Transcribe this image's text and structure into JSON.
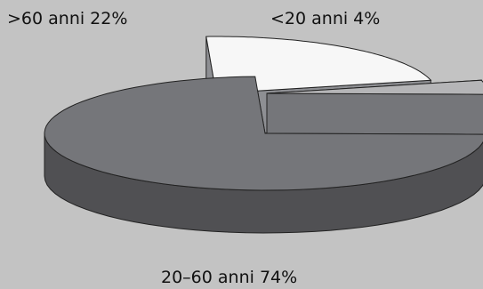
{
  "chart_data": {
    "type": "pie",
    "style": "3d-exploded",
    "slices": [
      {
        "label": ">60 anni 22%",
        "category": ">60 anni",
        "value": 22,
        "color": "#f7f7f7"
      },
      {
        "label": "<20 anni 4%",
        "category": "<20 anni",
        "value": 4,
        "color": "#b5b5b7"
      },
      {
        "label": "20–60 anni 74%",
        "category": "20–60 anni",
        "value": 74,
        "color": "#75767a"
      }
    ],
    "background": "#c3c3c3",
    "side_colors": [
      "#8e8f93",
      "#75767a",
      "#505053"
    ]
  }
}
